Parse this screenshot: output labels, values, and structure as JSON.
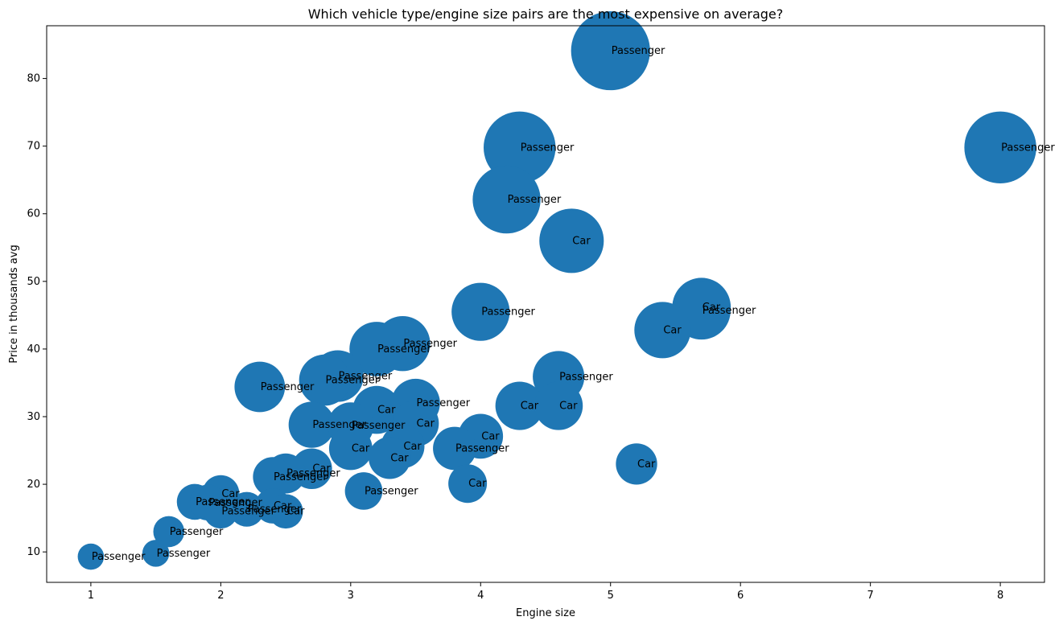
{
  "chart_data": {
    "type": "scatter",
    "title": "Which vehicle type/engine size pairs are the most expensive on average?",
    "xlabel": "Engine size",
    "ylabel": "Price in thousands avg",
    "xlim": [
      0.66,
      8.34
    ],
    "ylim": [
      5.5,
      87.8
    ],
    "xticks": [
      1,
      2,
      3,
      4,
      5,
      6,
      7,
      8
    ],
    "yticks": [
      10,
      20,
      30,
      40,
      50,
      60,
      70,
      80
    ],
    "grid": false,
    "marker_color": "#1f77b4",
    "marker_size_encodes": "Price in thousands avg",
    "points": [
      {
        "x": 5.0,
        "y": 84.1,
        "label": "Passenger"
      },
      {
        "x": 8.0,
        "y": 69.8,
        "label": "Passenger"
      },
      {
        "x": 4.3,
        "y": 69.8,
        "label": "Passenger"
      },
      {
        "x": 4.2,
        "y": 62.1,
        "label": "Passenger"
      },
      {
        "x": 4.7,
        "y": 56.0,
        "label": "Car"
      },
      {
        "x": 5.7,
        "y": 46.2,
        "label": "Car"
      },
      {
        "x": 5.7,
        "y": 45.7,
        "label": "Passenger"
      },
      {
        "x": 4.0,
        "y": 45.5,
        "label": "Passenger"
      },
      {
        "x": 5.4,
        "y": 42.8,
        "label": "Car"
      },
      {
        "x": 3.4,
        "y": 40.8,
        "label": "Passenger"
      },
      {
        "x": 3.2,
        "y": 40.0,
        "label": "Passenger"
      },
      {
        "x": 2.9,
        "y": 36.0,
        "label": "Passenger"
      },
      {
        "x": 4.6,
        "y": 35.9,
        "label": "Passenger"
      },
      {
        "x": 2.8,
        "y": 35.4,
        "label": "Passenger"
      },
      {
        "x": 2.3,
        "y": 34.4,
        "label": "Passenger"
      },
      {
        "x": 3.5,
        "y": 32.0,
        "label": "Passenger"
      },
      {
        "x": 4.3,
        "y": 31.6,
        "label": "Car"
      },
      {
        "x": 4.6,
        "y": 31.6,
        "label": "Car"
      },
      {
        "x": 3.2,
        "y": 31.0,
        "label": "Car"
      },
      {
        "x": 3.5,
        "y": 29.0,
        "label": "Car"
      },
      {
        "x": 2.7,
        "y": 28.8,
        "label": "Passenger"
      },
      {
        "x": 3.0,
        "y": 28.7,
        "label": "Passenger"
      },
      {
        "x": 4.0,
        "y": 27.1,
        "label": "Car"
      },
      {
        "x": 3.4,
        "y": 25.6,
        "label": "Car"
      },
      {
        "x": 3.0,
        "y": 25.3,
        "label": "Car"
      },
      {
        "x": 3.8,
        "y": 25.3,
        "label": "Passenger"
      },
      {
        "x": 3.3,
        "y": 23.9,
        "label": "Car"
      },
      {
        "x": 5.2,
        "y": 23.0,
        "label": "Car"
      },
      {
        "x": 2.7,
        "y": 22.3,
        "label": "Car"
      },
      {
        "x": 2.5,
        "y": 21.6,
        "label": "Passenger"
      },
      {
        "x": 2.4,
        "y": 21.1,
        "label": "Passenger"
      },
      {
        "x": 3.9,
        "y": 20.1,
        "label": "Car"
      },
      {
        "x": 3.1,
        "y": 19.0,
        "label": "Passenger"
      },
      {
        "x": 2.0,
        "y": 18.6,
        "label": "Car"
      },
      {
        "x": 1.8,
        "y": 17.4,
        "label": "Passenger"
      },
      {
        "x": 1.9,
        "y": 17.3,
        "label": "Passenger"
      },
      {
        "x": 2.4,
        "y": 16.8,
        "label": "Car"
      },
      {
        "x": 2.2,
        "y": 16.3,
        "label": "Passenger"
      },
      {
        "x": 2.0,
        "y": 16.0,
        "label": "Passenger"
      },
      {
        "x": 2.5,
        "y": 16.0,
        "label": "Car"
      },
      {
        "x": 1.6,
        "y": 13.0,
        "label": "Passenger"
      },
      {
        "x": 1.5,
        "y": 9.8,
        "label": "Passenger"
      },
      {
        "x": 1.0,
        "y": 9.3,
        "label": "Passenger"
      }
    ]
  }
}
